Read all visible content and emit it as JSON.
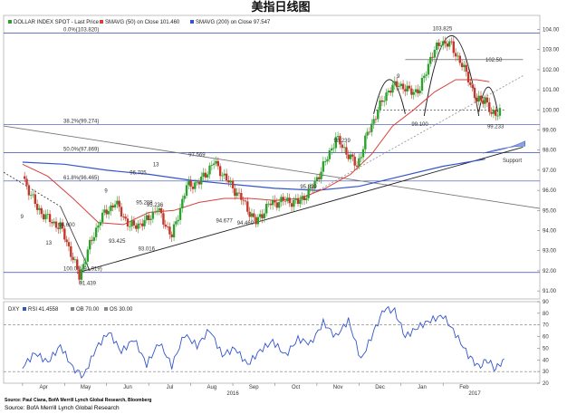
{
  "title": "美指日线图",
  "source_line_1": "Source: Paul Ciana, BofA Merrill Lynch Global Research, Bloomberg",
  "source_line_2": "Source: BofA Merrill Lynch Global Research",
  "chart_data": [
    {
      "type": "candlestick",
      "ticker": "DXY",
      "legend": [
        {
          "label": "DOLLAR INDEX SPOT - Last Price",
          "color": "#2ea02e"
        },
        {
          "label": "SMAVG (50) on Close 101.460",
          "color": "#d9403a"
        },
        {
          "label": "SMAVG (200) on Close 97.547",
          "color": "#3355cc"
        }
      ],
      "ylim": [
        90.6,
        104.7
      ],
      "y_ticks": [
        "104.00",
        "103.00",
        "102.00",
        "101.00",
        "100.00",
        "99.00",
        "98.00",
        "97.00",
        "96.00",
        "95.00",
        "94.00",
        "93.00",
        "92.00",
        "91.00"
      ],
      "x_month_labels": [
        "Apr",
        "May",
        "Jun",
        "Jul",
        "Aug",
        "Sep",
        "Oct",
        "Nov",
        "Dec",
        "Jan",
        "Feb"
      ],
      "x_year_labels": [
        "2016",
        "2017"
      ],
      "fib_levels": [
        {
          "label": "0.0%(103.820)",
          "value": 103.82
        },
        {
          "label": "38.2%(99.274)",
          "value": 99.274
        },
        {
          "label": "50.0%(97.869)",
          "value": 97.869
        },
        {
          "label": "61.8%(96.465)",
          "value": 96.465
        },
        {
          "label": "100.0%(91.919)",
          "value": 91.919
        }
      ],
      "resistance": {
        "label": "102.50",
        "value": 102.5
      },
      "neckline": 100.0,
      "support_label": "Support",
      "point_labels": [
        "91.439",
        "94.600",
        "93.425",
        "93.016",
        "95.208",
        "95.236",
        "96.705",
        "97.569",
        "94.677",
        "94.460",
        "95.899",
        "98.239",
        "103.825",
        "99.100",
        "99.233"
      ],
      "count_labels": [
        "9",
        "13",
        "9",
        "13",
        "9"
      ],
      "close_path": [
        {
          "month": 3.0,
          "close": 96.7
        },
        {
          "month": 3.35,
          "close": 95.1
        },
        {
          "month": 3.7,
          "close": 94.4
        },
        {
          "month": 3.9,
          "close": 94.2
        },
        {
          "month": 4.15,
          "close": 92.9
        },
        {
          "month": 4.35,
          "close": 91.7
        },
        {
          "month": 4.55,
          "close": 93.0
        },
        {
          "month": 4.85,
          "close": 94.6
        },
        {
          "month": 5.2,
          "close": 95.4
        },
        {
          "month": 5.55,
          "close": 94.2
        },
        {
          "month": 5.9,
          "close": 94.4
        },
        {
          "month": 6.2,
          "close": 95.1
        },
        {
          "month": 6.55,
          "close": 93.7
        },
        {
          "month": 6.9,
          "close": 96.2
        },
        {
          "month": 7.2,
          "close": 96.4
        },
        {
          "month": 7.55,
          "close": 97.4
        },
        {
          "month": 7.9,
          "close": 96.4
        },
        {
          "month": 8.2,
          "close": 95.6
        },
        {
          "month": 8.55,
          "close": 94.4
        },
        {
          "month": 8.85,
          "close": 95.3
        },
        {
          "month": 9.2,
          "close": 95.5
        },
        {
          "month": 9.55,
          "close": 95.4
        },
        {
          "month": 9.85,
          "close": 96.0
        },
        {
          "month": 10.2,
          "close": 97.4
        },
        {
          "month": 10.45,
          "close": 98.6
        },
        {
          "month": 10.7,
          "close": 97.9
        },
        {
          "month": 10.95,
          "close": 97.2
        },
        {
          "month": 11.2,
          "close": 98.8
        },
        {
          "month": 11.45,
          "close": 100.0
        },
        {
          "month": 11.7,
          "close": 101.0
        },
        {
          "month": 11.95,
          "close": 101.3
        },
        {
          "month": 12.2,
          "close": 100.9
        },
        {
          "month": 12.45,
          "close": 101.0
        },
        {
          "month": 12.7,
          "close": 102.6
        },
        {
          "month": 12.95,
          "close": 103.4
        },
        {
          "month": 13.2,
          "close": 103.2
        },
        {
          "month": 13.4,
          "close": 102.4
        },
        {
          "month": 13.6,
          "close": 101.6
        },
        {
          "month": 13.8,
          "close": 100.4
        },
        {
          "month": 14.0,
          "close": 100.6
        },
        {
          "month": 14.15,
          "close": 99.7
        },
        {
          "month": 14.35,
          "close": 100.0
        }
      ],
      "sma50_path": [
        {
          "month": 3.0,
          "close": 97.3
        },
        {
          "month": 3.6,
          "close": 96.7
        },
        {
          "month": 4.2,
          "close": 95.6
        },
        {
          "month": 4.8,
          "close": 94.4
        },
        {
          "month": 5.4,
          "close": 94.3
        },
        {
          "month": 6.0,
          "close": 94.9
        },
        {
          "month": 6.6,
          "close": 95.0
        },
        {
          "month": 7.2,
          "close": 95.4
        },
        {
          "month": 7.8,
          "close": 95.6
        },
        {
          "month": 8.4,
          "close": 95.6
        },
        {
          "month": 9.0,
          "close": 95.5
        },
        {
          "month": 9.6,
          "close": 95.6
        },
        {
          "month": 10.2,
          "close": 96.1
        },
        {
          "month": 10.8,
          "close": 96.8
        },
        {
          "month": 11.3,
          "close": 97.8
        },
        {
          "month": 11.8,
          "close": 99.2
        },
        {
          "month": 12.3,
          "close": 100.0
        },
        {
          "month": 12.8,
          "close": 100.9
        },
        {
          "month": 13.3,
          "close": 101.5
        },
        {
          "month": 13.8,
          "close": 101.5
        },
        {
          "month": 14.1,
          "close": 101.4
        }
      ],
      "sma200_path": [
        {
          "month": 3.0,
          "close": 97.4
        },
        {
          "month": 4.0,
          "close": 97.3
        },
        {
          "month": 5.0,
          "close": 97.0
        },
        {
          "month": 6.0,
          "close": 96.8
        },
        {
          "month": 7.0,
          "close": 96.5
        },
        {
          "month": 8.0,
          "close": 96.3
        },
        {
          "month": 9.0,
          "close": 96.1
        },
        {
          "month": 10.0,
          "close": 96.0
        },
        {
          "month": 11.0,
          "close": 96.2
        },
        {
          "month": 12.0,
          "close": 96.7
        },
        {
          "month": 13.0,
          "close": 97.2
        },
        {
          "month": 14.0,
          "close": 97.55
        }
      ]
    },
    {
      "type": "line",
      "ticker": "DXY",
      "rsi_label": "RSI 41.4558",
      "ob_label": "OB 70.00",
      "os_label": "OS 30.00",
      "ylim": [
        20,
        90
      ],
      "y_ticks": [
        "90",
        "80",
        "70",
        "60",
        "50",
        "40",
        "30",
        "20"
      ],
      "overbought": 70,
      "oversold": 30,
      "rsi_path": [
        {
          "month": 3.0,
          "value": 34
        },
        {
          "month": 3.3,
          "value": 46
        },
        {
          "month": 3.6,
          "value": 38
        },
        {
          "month": 3.9,
          "value": 52
        },
        {
          "month": 4.2,
          "value": 33
        },
        {
          "month": 4.45,
          "value": 26
        },
        {
          "month": 4.75,
          "value": 50
        },
        {
          "month": 5.05,
          "value": 64
        },
        {
          "month": 5.35,
          "value": 47
        },
        {
          "month": 5.65,
          "value": 58
        },
        {
          "month": 5.95,
          "value": 36
        },
        {
          "month": 6.25,
          "value": 55
        },
        {
          "month": 6.55,
          "value": 35
        },
        {
          "month": 6.85,
          "value": 62
        },
        {
          "month": 7.15,
          "value": 52
        },
        {
          "month": 7.45,
          "value": 66
        },
        {
          "month": 7.75,
          "value": 44
        },
        {
          "month": 8.05,
          "value": 50
        },
        {
          "month": 8.35,
          "value": 36
        },
        {
          "month": 8.65,
          "value": 48
        },
        {
          "month": 8.95,
          "value": 56
        },
        {
          "month": 9.25,
          "value": 44
        },
        {
          "month": 9.55,
          "value": 58
        },
        {
          "month": 9.85,
          "value": 54
        },
        {
          "month": 10.15,
          "value": 72
        },
        {
          "month": 10.45,
          "value": 60
        },
        {
          "month": 10.75,
          "value": 74
        },
        {
          "month": 11.05,
          "value": 40
        },
        {
          "month": 11.35,
          "value": 64
        },
        {
          "month": 11.6,
          "value": 84
        },
        {
          "month": 11.85,
          "value": 82
        },
        {
          "month": 12.1,
          "value": 60
        },
        {
          "month": 12.4,
          "value": 68
        },
        {
          "month": 12.7,
          "value": 74
        },
        {
          "month": 13.0,
          "value": 78
        },
        {
          "month": 13.3,
          "value": 62
        },
        {
          "month": 13.6,
          "value": 44
        },
        {
          "month": 13.85,
          "value": 34
        },
        {
          "month": 14.05,
          "value": 40
        },
        {
          "month": 14.25,
          "value": 32
        },
        {
          "month": 14.45,
          "value": 41
        }
      ]
    }
  ]
}
